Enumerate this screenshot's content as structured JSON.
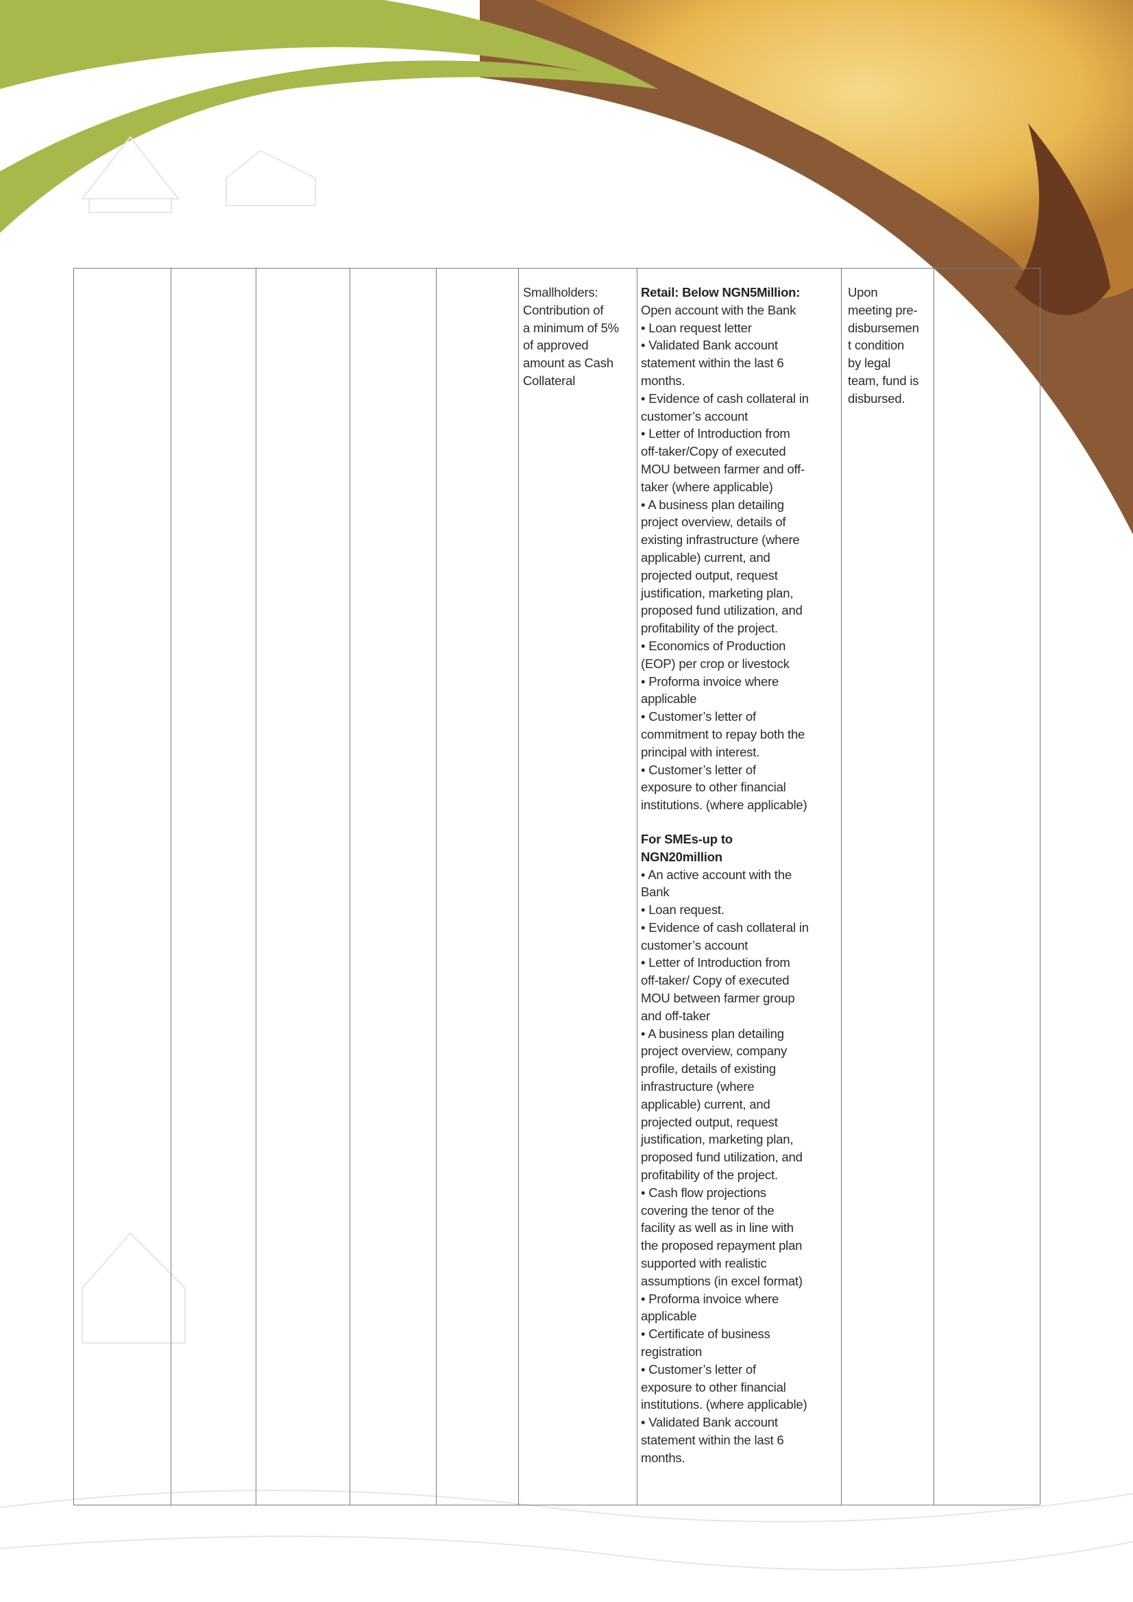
{
  "colors": {
    "green": "#a8b84a",
    "rice": "#e8b850",
    "skin": "#7a4a2a",
    "rule": "#7a7a7a"
  },
  "table": {
    "contribution": [
      "Smallholders:",
      "Contribution of",
      "a minimum of 5%",
      "of approved",
      "amount as Cash",
      "Collateral"
    ],
    "retail_heading": "Retail: Below NGN5Million:",
    "retail_lines": [
      "Open account with the Bank",
      "• Loan request letter",
      "• Validated Bank account",
      "statement within the last 6",
      "months.",
      "• Evidence of cash collateral in",
      "customer’s account",
      "• Letter of Introduction from",
      "off-taker/Copy of executed",
      "MOU between farmer and off-",
      "taker (where applicable)",
      "• A business plan detailing",
      "project overview, details of",
      "existing infrastructure (where",
      "applicable) current, and",
      "projected output, request",
      "justification, marketing plan,",
      "proposed fund utilization, and",
      "profitability of the project.",
      "• Economics of Production",
      "(EOP) per crop or livestock",
      "• Proforma invoice where",
      "applicable",
      "• Customer’s letter of",
      "commitment to repay both the",
      "principal with interest.",
      "• Customer’s letter of",
      "exposure to other financial",
      "institutions. (where applicable)"
    ],
    "sme_heading": [
      "For SMEs-up to",
      "NGN20million"
    ],
    "sme_lines": [
      "• An active account with the",
      "Bank",
      "• Loan request.",
      "• Evidence of cash collateral in",
      "customer’s account",
      "• Letter of Introduction from",
      "off-taker/ Copy of executed",
      "MOU between farmer group",
      "and off-taker",
      "• A business plan detailing",
      "project overview, company",
      "profile, details of existing",
      "infrastructure (where",
      "applicable) current, and",
      "projected output, request",
      "justification, marketing plan,",
      "proposed fund utilization, and",
      "profitability of the project.",
      "• Cash flow projections",
      "covering the tenor of the",
      "facility as well as in line with",
      "the proposed repayment plan",
      "supported with realistic",
      "assumptions (in excel format)",
      "• Proforma invoice where",
      "applicable",
      "• Certificate of business",
      "registration",
      "• Customer’s letter of",
      "exposure to other financial",
      "institutions. (where applicable)",
      "• Validated Bank account",
      "statement within the last 6",
      "months."
    ],
    "disbursement": [
      "Upon",
      "meeting pre-",
      "disbursemen",
      "t condition",
      "by legal",
      "team, fund is",
      "disbursed."
    ]
  }
}
